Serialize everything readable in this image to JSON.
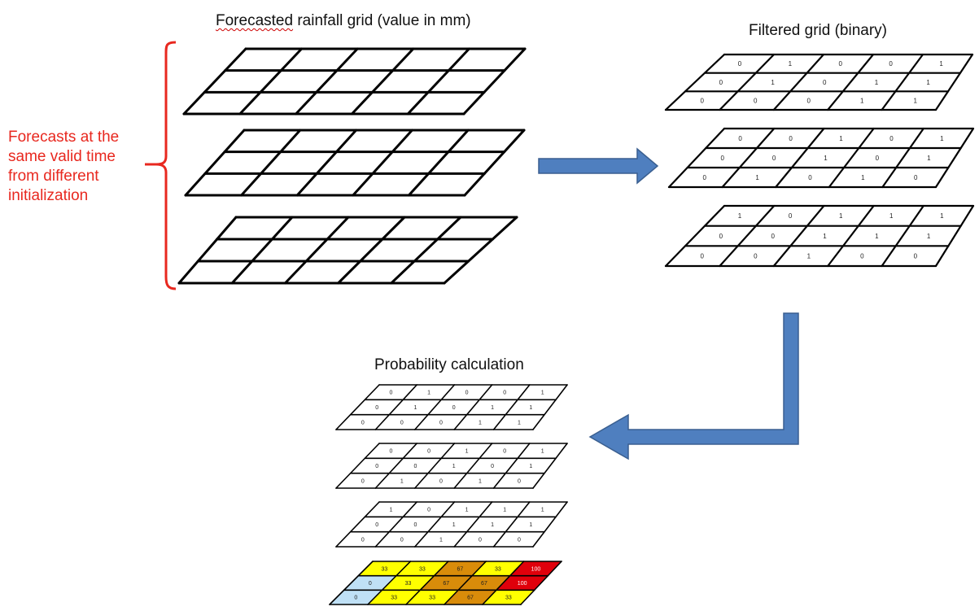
{
  "titles": {
    "forecast_main": "Forecasted",
    "forecast_rest": " rainfall grid (value in mm)",
    "filtered": "Filtered grid (binary)",
    "probability": "Probability calculation"
  },
  "side_label": [
    "Forecasts at the",
    "same valid time",
    "from different",
    "initialization"
  ],
  "colors": {
    "grid_line": "#000000",
    "arrow_fill": "#4f7fbf",
    "arrow_stroke": "#3a5f90",
    "label_red": "#e8281f",
    "prob_0": "#bfe0f5",
    "prob_33": "#ffff00",
    "prob_67": "#d98c0a",
    "prob_100": "#e0000b"
  },
  "filtered_grids": [
    [
      [
        "0",
        "1",
        "0",
        "0",
        "1"
      ],
      [
        "0",
        "1",
        "0",
        "1",
        "1"
      ],
      [
        "0",
        "0",
        "0",
        "1",
        "1"
      ]
    ],
    [
      [
        "0",
        "0",
        "1",
        "0",
        "1"
      ],
      [
        "0",
        "0",
        "1",
        "0",
        "1"
      ],
      [
        "0",
        "1",
        "0",
        "1",
        "0"
      ]
    ],
    [
      [
        "1",
        "0",
        "1",
        "1",
        "1"
      ],
      [
        "0",
        "0",
        "1",
        "1",
        "1"
      ],
      [
        "0",
        "0",
        "1",
        "0",
        "0"
      ]
    ]
  ],
  "probability_grid": [
    [
      "33",
      "33",
      "67",
      "33",
      "100"
    ],
    [
      "0",
      "33",
      "67",
      "67",
      "100"
    ],
    [
      "0",
      "33",
      "33",
      "67",
      "33"
    ]
  ]
}
